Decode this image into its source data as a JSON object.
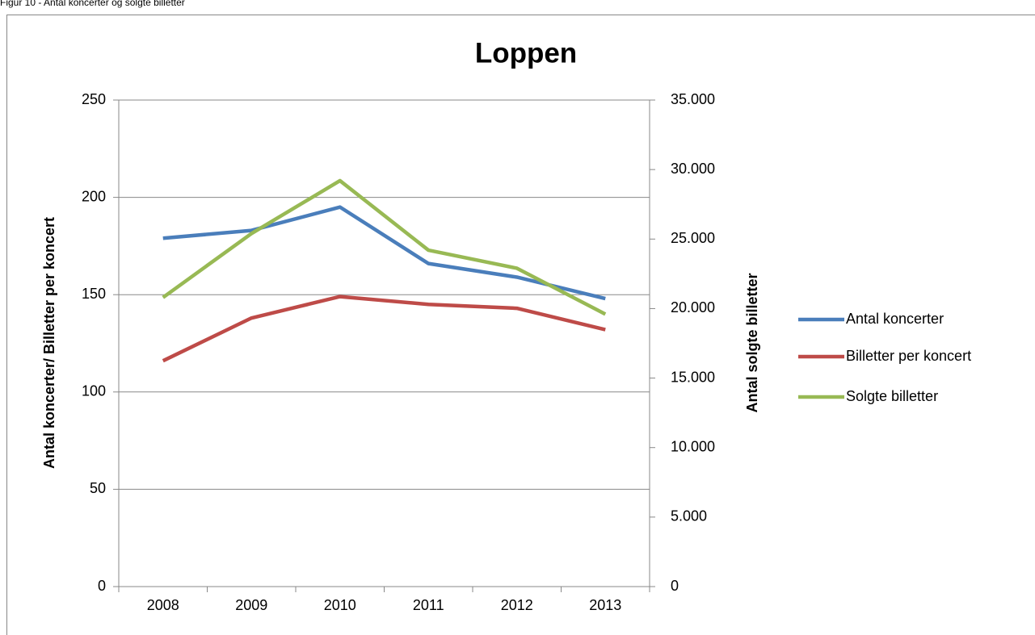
{
  "caption": "Figur 10 - Antal koncerter og solgte billetter",
  "chart_data": {
    "type": "line",
    "title": "Loppen",
    "y_label": "Antal koncerter/ Billetter per koncert",
    "y2_label": "Antal solgte billetter",
    "categories": [
      "2008",
      "2009",
      "2010",
      "2011",
      "2012",
      "2013"
    ],
    "series": [
      {
        "name": "Antal koncerter",
        "color": "#4a7ebb",
        "values": [
          179,
          183,
          195,
          166,
          159,
          148
        ]
      },
      {
        "name": "Billetter per koncert",
        "color": "#be4b48",
        "values": [
          116,
          138,
          149,
          145,
          143,
          132
        ]
      },
      {
        "name": "Solgte billetter",
        "color": "#98b954",
        "axis": "y2",
        "values": [
          20800,
          25400,
          29200,
          24200,
          22900,
          19600
        ]
      }
    ],
    "ylim": [
      0,
      250
    ],
    "yticks": [
      0,
      50,
      100,
      150,
      200,
      250
    ],
    "y2lim": [
      0,
      35000
    ],
    "y2ticks": [
      0,
      {
        "value": 5000,
        "label": "5.000"
      },
      {
        "value": 10000,
        "label": "10.000"
      },
      {
        "value": 15000,
        "label": "15.000"
      },
      {
        "value": 20000,
        "label": "20.000"
      },
      {
        "value": 25000,
        "label": "25.000"
      },
      {
        "value": 30000,
        "label": "30.000"
      },
      {
        "value": 35000,
        "label": "35.000"
      }
    ],
    "grid": true,
    "legend": "right"
  }
}
